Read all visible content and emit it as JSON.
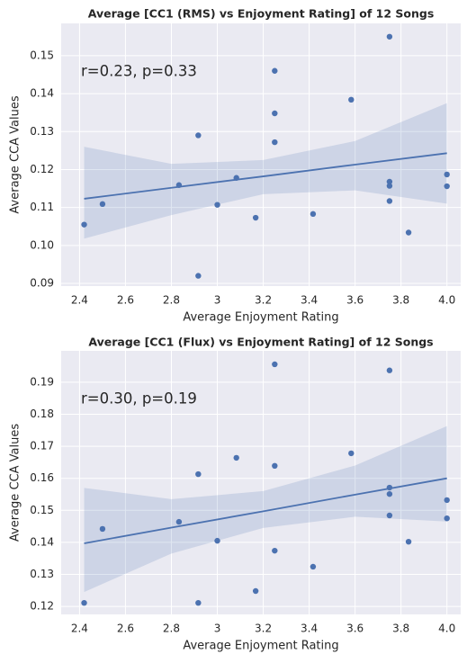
{
  "chart_data": [
    {
      "type": "scatter",
      "title": "Average [CC1 (RMS) vs Enjoyment Rating] of 12 Songs",
      "x_label": "Average Enjoyment Rating",
      "y_label": "Average CCA Values",
      "annotation": "r=0.23, p=0.33",
      "color": "#4c72b0",
      "grid": true,
      "xlim": [
        2.32,
        4.06
      ],
      "ylim": [
        0.0893,
        0.1585
      ],
      "xticks": [
        2.4,
        2.6,
        2.8,
        3.0,
        3.2,
        3.4,
        3.6,
        3.8,
        {
          "value": 4,
          "label": "4.0"
        }
      ],
      "yticks": [
        0.09,
        {
          "value": 0.1,
          "label": "0.10"
        },
        0.11,
        0.12,
        0.13,
        0.14,
        0.15
      ],
      "x": [
        2.42,
        2.5,
        2.833,
        2.917,
        2.917,
        3.0,
        3.083,
        3.167,
        3.25,
        3.25,
        3.25,
        3.417,
        3.583,
        3.75,
        3.75,
        3.75,
        3.75,
        3.833,
        4.0,
        4.0
      ],
      "values": [
        0.1055,
        0.1109,
        0.1159,
        0.129,
        0.092,
        0.1107,
        0.1178,
        0.1073,
        0.146,
        0.1348,
        0.1272,
        0.1083,
        0.1384,
        0.155,
        0.1168,
        0.1157,
        0.1117,
        0.1034,
        0.1187,
        0.1156
      ],
      "regression": {
        "x": [
          2.42,
          2.8,
          3.2,
          3.6,
          4.0
        ],
        "y": [
          0.1123,
          0.1152,
          0.1182,
          0.1213,
          0.1243
        ],
        "ci_upper": [
          0.126,
          0.1215,
          0.1225,
          0.1275,
          0.1375
        ],
        "ci_lower": [
          0.1018,
          0.108,
          0.1135,
          0.1145,
          0.111
        ]
      }
    },
    {
      "type": "scatter",
      "title": "Average [CC1 (Flux) vs Enjoyment Rating] of 12 Songs",
      "x_label": "Average Enjoyment Rating",
      "y_label": "Average CCA Values",
      "annotation": "r=0.30, p=0.19",
      "color": "#4c72b0",
      "grid": true,
      "xlim": [
        2.32,
        4.06
      ],
      "ylim": [
        0.1175,
        0.1998
      ],
      "xticks": [
        2.4,
        2.6,
        2.8,
        3.0,
        3.2,
        3.4,
        3.6,
        3.8,
        {
          "value": 4,
          "label": "4.0"
        }
      ],
      "yticks": [
        0.12,
        0.13,
        0.14,
        0.15,
        0.16,
        0.17,
        0.18,
        0.19
      ],
      "x": [
        2.42,
        2.5,
        2.833,
        2.917,
        2.917,
        3.0,
        3.083,
        3.167,
        3.25,
        3.25,
        3.25,
        3.417,
        3.583,
        3.75,
        3.75,
        3.75,
        3.75,
        3.833,
        4.0,
        4.0
      ],
      "values": [
        0.1211,
        0.1442,
        0.1464,
        0.1613,
        0.1211,
        0.1405,
        0.1664,
        0.1248,
        0.1956,
        0.1639,
        0.1374,
        0.1324,
        0.1678,
        0.1937,
        0.1571,
        0.1551,
        0.1484,
        0.1402,
        0.1532,
        0.1475
      ],
      "regression": {
        "x": [
          2.42,
          2.8,
          3.2,
          3.6,
          4.0
        ],
        "y": [
          0.1397,
          0.1446,
          0.1497,
          0.1549,
          0.16
        ],
        "ci_upper": [
          0.157,
          0.1535,
          0.156,
          0.164,
          0.1763
        ],
        "ci_lower": [
          0.1245,
          0.1365,
          0.1445,
          0.148,
          0.1465
        ]
      }
    }
  ]
}
